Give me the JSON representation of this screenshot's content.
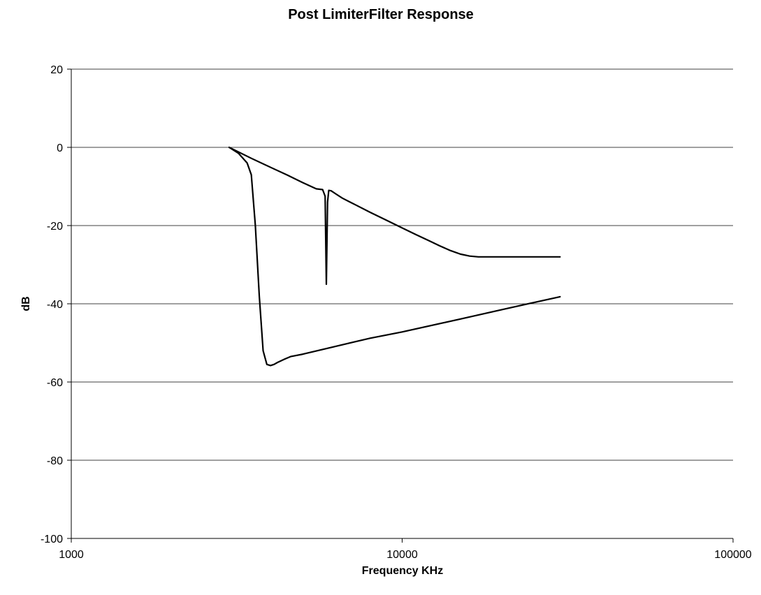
{
  "chart_data": {
    "type": "line",
    "title": "Post LimiterFilter Response",
    "xlabel": "Frequency KHz",
    "ylabel": "dB",
    "xscale": "log",
    "xlim": [
      1000,
      100000
    ],
    "ylim": [
      -100,
      20
    ],
    "x_ticks": [
      1000,
      10000,
      100000
    ],
    "x_tick_labels": [
      "1000",
      "10000",
      "100000"
    ],
    "y_ticks": [
      20,
      0,
      -20,
      -40,
      -60,
      -80,
      -100
    ],
    "y_tick_labels": [
      "20",
      "0",
      "-20",
      "-40",
      "-60",
      "-80",
      "-100"
    ],
    "grid": "horizontal",
    "legend": "none",
    "line_color": "#000000",
    "series": [
      {
        "x": [
          3000,
          3500,
          4000,
          4500,
          5000,
          5500,
          5750,
          5850,
          5900,
          5950,
          6000,
          6100,
          6300,
          6600,
          7000,
          8000,
          9000,
          10000,
          11000,
          12000,
          13000,
          14000,
          15000,
          16000,
          17000,
          18000,
          20000,
          25000,
          30000
        ],
        "y": [
          0,
          -2.8,
          -5.1,
          -7.1,
          -9.0,
          -10.6,
          -10.8,
          -12.5,
          -35,
          -14,
          -11.0,
          -11.1,
          -11.9,
          -13.0,
          -14.1,
          -16.6,
          -18.7,
          -20.6,
          -22.3,
          -23.8,
          -25.2,
          -26.4,
          -27.3,
          -27.8,
          -28.0,
          -28.0,
          -28.0,
          -28.0,
          -28.0
        ]
      },
      {
        "x": [
          3000,
          3200,
          3400,
          3500,
          3600,
          3700,
          3800,
          3900,
          4000,
          4100,
          4200,
          4300,
          4400,
          4600,
          5000,
          6000,
          8000,
          10000,
          15000,
          20000,
          30000
        ],
        "y": [
          0,
          -1.5,
          -4,
          -7,
          -20,
          -38,
          -52,
          -55.5,
          -55.8,
          -55.5,
          -55,
          -54.6,
          -54.2,
          -53.5,
          -52.9,
          -51.3,
          -48.8,
          -47.2,
          -43.9,
          -41.5,
          -38.2
        ]
      }
    ]
  }
}
